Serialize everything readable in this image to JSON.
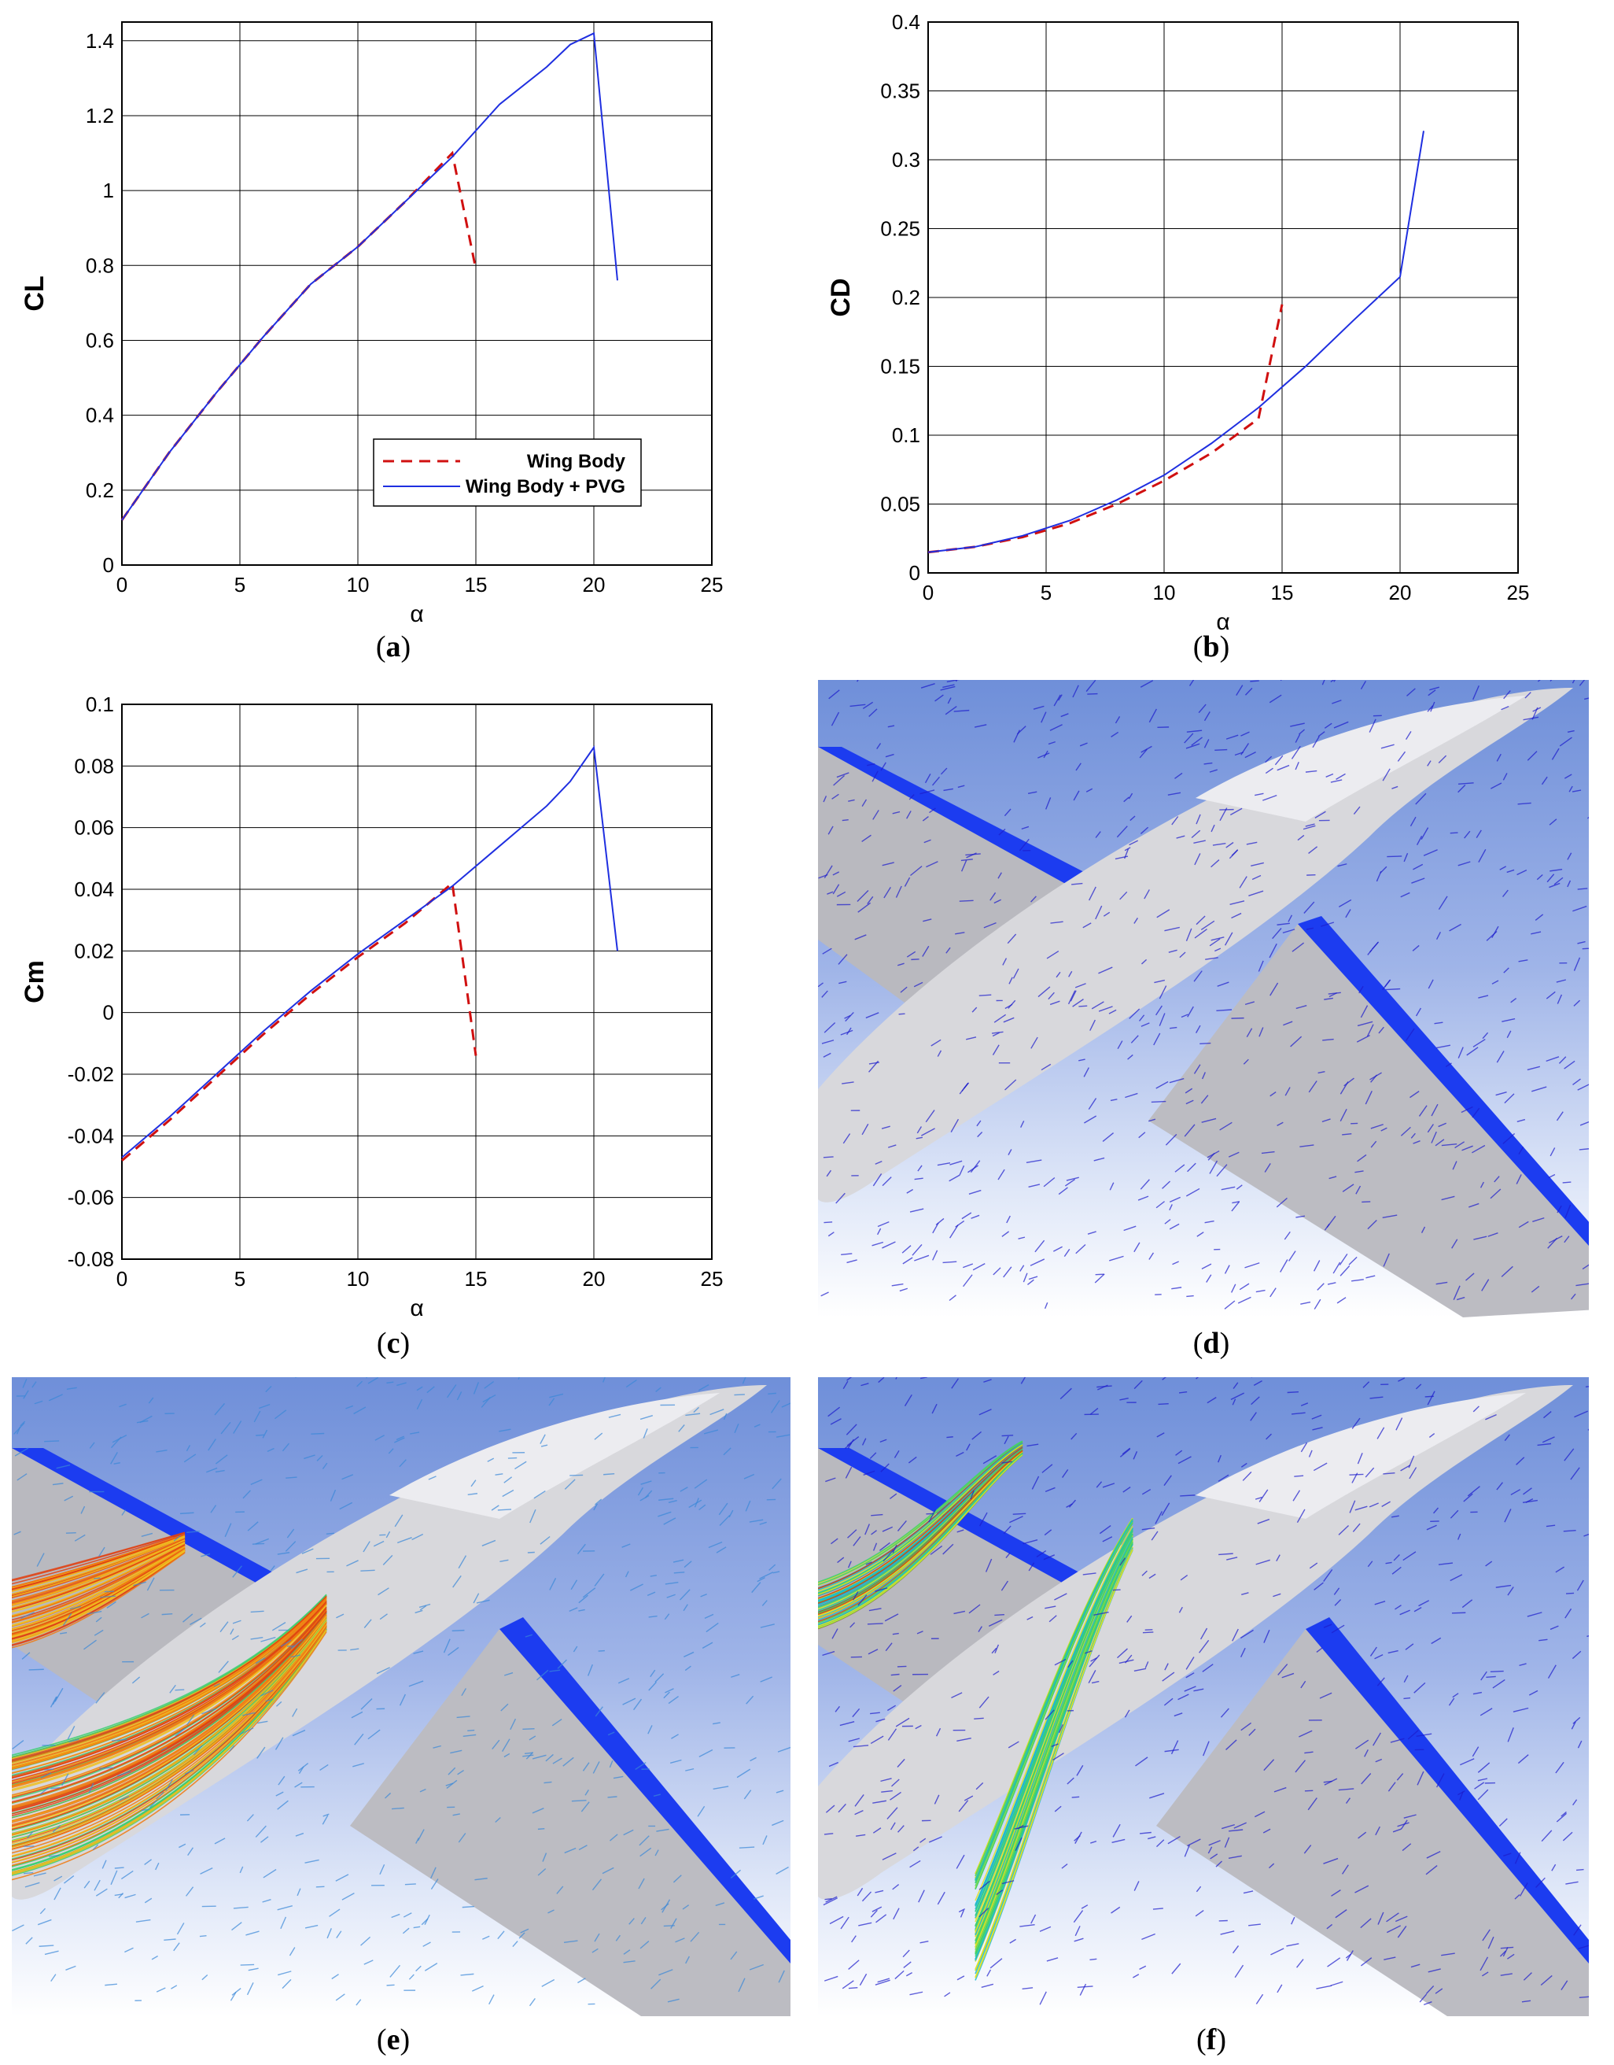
{
  "captions": {
    "a": [
      "(",
      "a",
      ")"
    ],
    "b": [
      "(",
      "b",
      ")"
    ],
    "c": [
      "(",
      "c",
      ")"
    ],
    "d": [
      "(",
      "d",
      ")"
    ],
    "e": [
      "(",
      "e",
      ")"
    ],
    "f": [
      "(",
      "f",
      ")"
    ]
  },
  "legend": {
    "series_1": "Wing Body",
    "series_2": "Wing Body + PVG"
  },
  "colors": {
    "wing_body": "#d01010",
    "wing_body_pvg": "#1f2fe0",
    "grid": "#000000",
    "sky_top": "#6f8fd9",
    "surface": "#c8c8cc",
    "streak": "#1c1ccc",
    "ribbon_orange": "#f07a10",
    "ribbon_green": "#38d070"
  },
  "chart_data": [
    {
      "id": "a",
      "type": "line",
      "xlabel": "α",
      "ylabel": "CL",
      "xlim": [
        0,
        25
      ],
      "ylim": [
        0,
        1.45
      ],
      "xticks": [
        0,
        5,
        10,
        15,
        20,
        25
      ],
      "yticks": [
        0,
        0.2,
        0.4,
        0.6,
        0.8,
        1,
        1.2,
        1.4
      ],
      "ytick_labels": [
        "0",
        "0.2",
        "0.4",
        "0.6",
        "0.8",
        "1",
        "1.2",
        "1.4"
      ],
      "grid": true,
      "legend_position": "bottom-right",
      "series": [
        {
          "name": "Wing Body",
          "style": "dashed",
          "x": [
            0,
            2,
            4,
            6,
            8,
            10,
            12,
            14,
            15
          ],
          "y": [
            0.12,
            0.3,
            0.46,
            0.61,
            0.75,
            0.85,
            0.97,
            1.1,
            0.79
          ]
        },
        {
          "name": "Wing Body + PVG",
          "style": "solid",
          "x": [
            0,
            2,
            4,
            6,
            8,
            10,
            12,
            14,
            16,
            18,
            19,
            20,
            21
          ],
          "y": [
            0.12,
            0.3,
            0.46,
            0.61,
            0.75,
            0.85,
            0.97,
            1.09,
            1.23,
            1.33,
            1.39,
            1.42,
            0.76
          ]
        }
      ]
    },
    {
      "id": "b",
      "type": "line",
      "xlabel": "α",
      "ylabel": "CD",
      "xlim": [
        0,
        25
      ],
      "ylim": [
        0,
        0.4
      ],
      "xticks": [
        0,
        5,
        10,
        15,
        20,
        25
      ],
      "yticks": [
        0,
        0.05,
        0.1,
        0.15,
        0.2,
        0.25,
        0.3,
        0.35,
        0.4
      ],
      "ytick_labels": [
        "0",
        "0.05",
        "0.1",
        "0.15",
        "0.2",
        "0.25",
        "0.3",
        "0.35",
        "0.4"
      ],
      "grid": true,
      "series": [
        {
          "name": "Wing Body",
          "style": "dashed",
          "x": [
            0,
            2,
            4,
            6,
            8,
            10,
            12,
            14,
            15
          ],
          "y": [
            0.015,
            0.019,
            0.026,
            0.036,
            0.05,
            0.067,
            0.087,
            0.112,
            0.195
          ]
        },
        {
          "name": "Wing Body + PVG",
          "style": "solid",
          "x": [
            0,
            2,
            4,
            6,
            8,
            10,
            12,
            14,
            16,
            18,
            20,
            21
          ],
          "y": [
            0.015,
            0.019,
            0.027,
            0.038,
            0.053,
            0.071,
            0.094,
            0.12,
            0.15,
            0.183,
            0.215,
            0.321
          ]
        }
      ]
    },
    {
      "id": "c",
      "type": "line",
      "xlabel": "α",
      "ylabel": "Cm",
      "xlim": [
        0,
        25
      ],
      "ylim": [
        -0.08,
        0.1
      ],
      "xticks": [
        0,
        5,
        10,
        15,
        20,
        25
      ],
      "yticks": [
        -0.08,
        -0.06,
        -0.04,
        -0.02,
        0,
        0.02,
        0.04,
        0.06,
        0.08,
        0.1
      ],
      "ytick_labels": [
        "-0.08",
        "-0.06",
        "-0.04",
        "-0.02",
        "0",
        "0.02",
        "0.04",
        "0.06",
        "0.08",
        "0.1"
      ],
      "grid": true,
      "series": [
        {
          "name": "Wing Body",
          "style": "dashed",
          "x": [
            0,
            2,
            4,
            6,
            8,
            10,
            12,
            14,
            15
          ],
          "y": [
            -0.048,
            -0.035,
            -0.021,
            -0.007,
            0.006,
            0.018,
            0.029,
            0.042,
            -0.014
          ]
        },
        {
          "name": "Wing Body + PVG",
          "style": "solid",
          "x": [
            0,
            2,
            4,
            6,
            8,
            10,
            12,
            14,
            16,
            18,
            19,
            20,
            21
          ],
          "y": [
            -0.047,
            -0.034,
            -0.02,
            -0.006,
            0.007,
            0.019,
            0.03,
            0.041,
            0.054,
            0.067,
            0.075,
            0.086,
            0.02
          ]
        }
      ]
    }
  ]
}
